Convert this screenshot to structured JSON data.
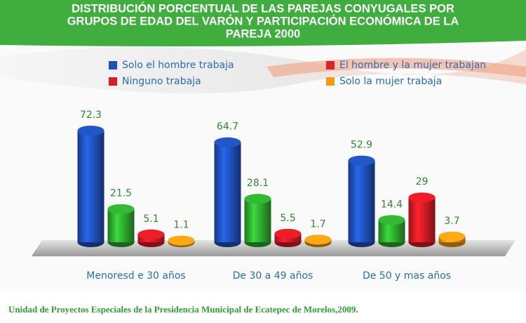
{
  "chart_data": {
    "type": "bar",
    "title": [
      "DISTRIBUCIÓN PORCENTUAL DE LAS PAREJAS CONYUGALES POR",
      "GRUPOS DE EDAD DEL VARÓN Y PARTICIPACIÓN ECONÓMICA DE LA",
      "PAREJA 2000"
    ],
    "categories": [
      "Menoresd e 30 años",
      "De 30 a 49 años",
      "De 50 y mas años"
    ],
    "series": [
      {
        "name": "Solo el hombre trabaja",
        "color": "#1f4fb8",
        "values": [
          72.3,
          64.7,
          52.9
        ]
      },
      {
        "name": "El hombre y la mujer trabajan",
        "color": "#2ea82e",
        "legend_color": "#e0202a",
        "values": [
          21.5,
          28.1,
          14.4
        ]
      },
      {
        "name": "Ninguno trabaja",
        "color": "#d81b24",
        "values": [
          5.1,
          5.5,
          29
        ]
      },
      {
        "name": "Solo la mujer trabaja",
        "color": "#f29a12",
        "values": [
          1.1,
          1.7,
          3.7
        ]
      }
    ],
    "ylim": [
      0,
      80
    ],
    "source": "Unidad de Proyectos Especiales de la Presidencia Municipal de Ecatepec de Morelos,2009."
  }
}
